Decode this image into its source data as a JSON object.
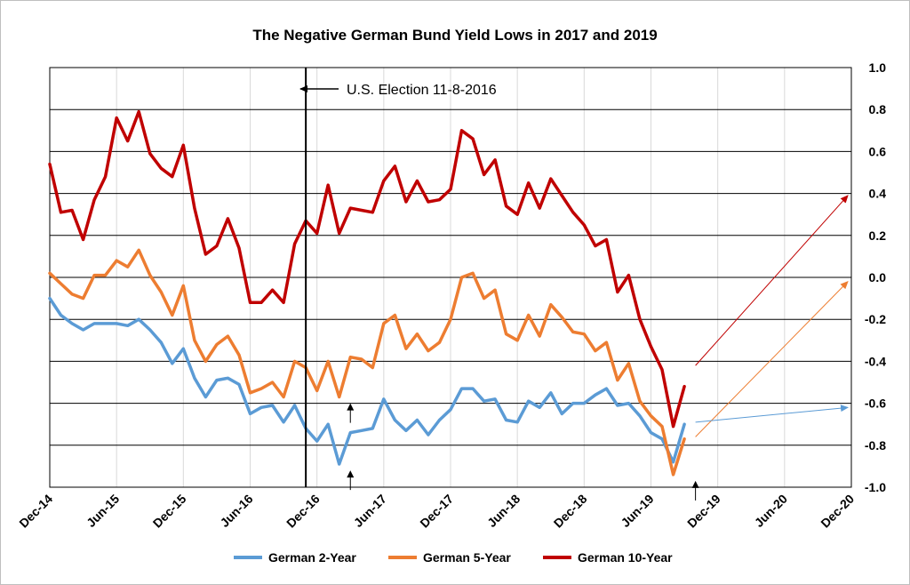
{
  "chart_data": {
    "type": "line",
    "title": "The Negative German Bund Yield Lows in 2017 and 2019",
    "xlabel": "",
    "ylabel": "",
    "ylim": [
      -1.0,
      1.0
    ],
    "y_ticks": [
      "1.0",
      "0.8",
      "0.6",
      "0.4",
      "0.2",
      "0.0",
      "-0.2",
      "-0.4",
      "-0.6",
      "-0.8",
      "-1.0"
    ],
    "x_tick_labels": [
      "Dec-14",
      "Jun-15",
      "Dec-15",
      "Jun-16",
      "Dec-16",
      "Jun-17",
      "Dec-17",
      "Jun-18",
      "Dec-18",
      "Jun-19",
      "Dec-19",
      "Jun-20",
      "Dec-20"
    ],
    "x_start": "2014-12",
    "x_end": "2020-12",
    "y_axis_side": "right",
    "grid": true,
    "legend_position": "bottom",
    "series": [
      {
        "name": "German 2-Year",
        "color": "#5b9bd5",
        "values": [
          -0.1,
          -0.18,
          -0.22,
          -0.25,
          -0.22,
          -0.22,
          -0.22,
          -0.23,
          -0.2,
          -0.25,
          -0.31,
          -0.41,
          -0.34,
          -0.48,
          -0.57,
          -0.49,
          -0.48,
          -0.51,
          -0.65,
          -0.62,
          -0.61,
          -0.69,
          -0.61,
          -0.72,
          -0.78,
          -0.7,
          -0.89,
          -0.74,
          -0.73,
          -0.72,
          -0.58,
          -0.68,
          -0.73,
          -0.68,
          -0.75,
          -0.68,
          -0.63,
          -0.53,
          -0.53,
          -0.59,
          -0.58,
          -0.68,
          -0.69,
          -0.59,
          -0.62,
          -0.55,
          -0.65,
          -0.6,
          -0.6,
          -0.56,
          -0.53,
          -0.61,
          -0.6,
          -0.66,
          -0.74,
          -0.77,
          -0.88,
          -0.7
        ]
      },
      {
        "name": "German 5-Year",
        "color": "#ed7d31",
        "values": [
          0.02,
          -0.03,
          -0.08,
          -0.1,
          0.01,
          0.01,
          0.08,
          0.05,
          0.13,
          0.01,
          -0.07,
          -0.18,
          -0.04,
          -0.3,
          -0.4,
          -0.32,
          -0.28,
          -0.37,
          -0.55,
          -0.53,
          -0.5,
          -0.57,
          -0.4,
          -0.43,
          -0.54,
          -0.4,
          -0.57,
          -0.38,
          -0.39,
          -0.43,
          -0.22,
          -0.18,
          -0.34,
          -0.27,
          -0.35,
          -0.31,
          -0.2,
          0.0,
          0.02,
          -0.1,
          -0.06,
          -0.27,
          -0.3,
          -0.18,
          -0.28,
          -0.13,
          -0.19,
          -0.26,
          -0.27,
          -0.35,
          -0.31,
          -0.49,
          -0.41,
          -0.59,
          -0.66,
          -0.71,
          -0.94,
          -0.77
        ]
      },
      {
        "name": "German 10-Year",
        "color": "#c00000",
        "values": [
          0.54,
          0.31,
          0.32,
          0.18,
          0.37,
          0.48,
          0.76,
          0.65,
          0.79,
          0.59,
          0.52,
          0.48,
          0.63,
          0.33,
          0.11,
          0.15,
          0.28,
          0.14,
          -0.12,
          -0.12,
          -0.06,
          -0.12,
          0.16,
          0.27,
          0.21,
          0.44,
          0.21,
          0.33,
          0.32,
          0.31,
          0.46,
          0.53,
          0.36,
          0.46,
          0.36,
          0.37,
          0.42,
          0.7,
          0.66,
          0.49,
          0.56,
          0.34,
          0.3,
          0.45,
          0.33,
          0.47,
          0.39,
          0.31,
          0.25,
          0.15,
          0.18,
          -0.07,
          0.01,
          -0.2,
          -0.33,
          -0.44,
          -0.71,
          -0.52
        ]
      }
    ],
    "projections": [
      {
        "series": "German 10-Year",
        "color": "#c00000",
        "from": [
          58,
          -0.42
        ],
        "to": [
          72,
          0.39
        ]
      },
      {
        "series": "German 5-Year",
        "color": "#ed7d31",
        "from": [
          58,
          -0.76
        ],
        "to": [
          72,
          -0.02
        ]
      },
      {
        "series": "German 2-Year",
        "color": "#5b9bd5",
        "from": [
          58,
          -0.69
        ],
        "to": [
          72,
          -0.62
        ]
      }
    ],
    "vertical_line": {
      "x_index": 23
    },
    "annotations": [
      {
        "text": "U.S. Election 11-8-2016"
      }
    ],
    "marker_arrows": [
      {
        "x_index": 27,
        "y": -0.6
      },
      {
        "x_index": 27,
        "y": -0.92
      },
      {
        "x_index": 58,
        "y": -0.97
      }
    ]
  }
}
